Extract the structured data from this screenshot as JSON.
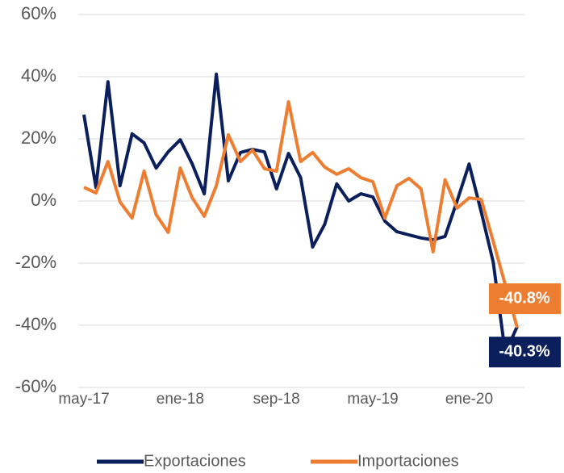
{
  "chart_data": {
    "type": "line",
    "categories": [
      "may-17",
      null,
      null,
      null,
      null,
      null,
      null,
      null,
      "ene-18",
      null,
      null,
      null,
      null,
      null,
      null,
      null,
      "sep-18",
      null,
      null,
      null,
      null,
      null,
      null,
      null,
      "may-19",
      null,
      null,
      null,
      null,
      null,
      null,
      null,
      "ene-20",
      null,
      null,
      null,
      null
    ],
    "series": [
      {
        "name": "Exportaciones",
        "color": "#0a1f5c",
        "values": [
          27.8,
          4.4,
          38.4,
          4.9,
          21.6,
          18.7,
          10.6,
          15.8,
          19.7,
          11.9,
          2.3,
          40.8,
          6.5,
          15.6,
          16.6,
          15.8,
          3.9,
          15.3,
          7.5,
          -14.8,
          -7.5,
          5.5,
          0,
          2.3,
          1.3,
          -6.5,
          -9.9,
          -10.9,
          -11.9,
          -12.5,
          -11.4,
          0,
          11.9,
          -3.5,
          -19.7,
          -49,
          -40.3
        ],
        "value_labels": [
          null,
          null,
          null,
          null,
          null,
          null,
          null,
          null,
          null,
          null,
          null,
          null,
          null,
          null,
          null,
          null,
          null,
          null,
          null,
          null,
          null,
          null,
          null,
          null,
          null,
          null,
          null,
          null,
          null,
          null,
          null,
          null,
          null,
          null,
          null,
          null,
          "-40.3%"
        ]
      },
      {
        "name": "Importaciones",
        "color": "#ed7d31",
        "values": [
          4.4,
          2.6,
          12.7,
          -0.3,
          -5.5,
          9.6,
          -4.4,
          -10.1,
          10.6,
          1.0,
          -4.9,
          4.9,
          21.3,
          12.7,
          16.4,
          10.4,
          9.6,
          31.9,
          12.7,
          15.6,
          10.9,
          8.6,
          10.4,
          7.5,
          6.2,
          -5.5,
          4.9,
          7.3,
          3.9,
          -16.4,
          6.8,
          -2.3,
          1.0,
          0.5,
          -13,
          -27,
          -40.8
        ],
        "value_labels": [
          null,
          null,
          null,
          null,
          null,
          null,
          null,
          null,
          null,
          null,
          null,
          null,
          null,
          null,
          null,
          null,
          null,
          null,
          null,
          null,
          null,
          null,
          null,
          null,
          null,
          null,
          null,
          null,
          null,
          null,
          null,
          null,
          null,
          null,
          null,
          null,
          "-40.8%"
        ]
      }
    ],
    "ylim": [
      -60,
      60
    ],
    "yticks": [
      {
        "value": -60,
        "label": "-60%"
      },
      {
        "value": -40,
        "label": "-40%"
      },
      {
        "value": -20,
        "label": "-20%"
      },
      {
        "value": 0,
        "label": "0%"
      },
      {
        "value": 20,
        "label": "20%"
      },
      {
        "value": 40,
        "label": "40%"
      },
      {
        "value": 60,
        "label": "60%"
      }
    ],
    "grid": true,
    "legend": "bottom"
  }
}
